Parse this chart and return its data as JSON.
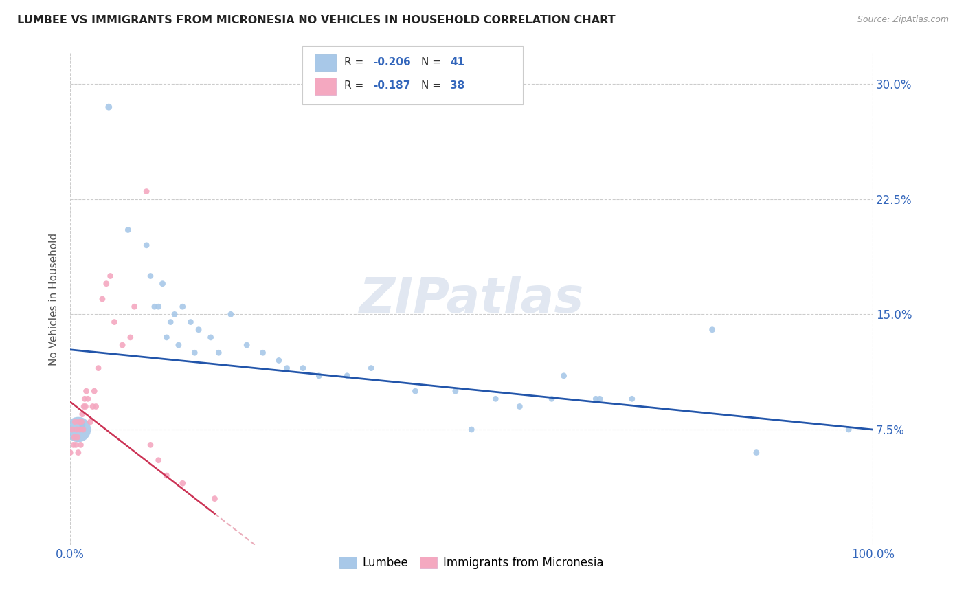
{
  "title": "LUMBEE VS IMMIGRANTS FROM MICRONESIA NO VEHICLES IN HOUSEHOLD CORRELATION CHART",
  "source": "Source: ZipAtlas.com",
  "ylabel": "No Vehicles in Household",
  "xlim": [
    0.0,
    1.0
  ],
  "ylim": [
    0.0,
    0.32
  ],
  "ytick_vals": [
    0.075,
    0.15,
    0.225,
    0.3
  ],
  "ytick_labels": [
    "7.5%",
    "15.0%",
    "22.5%",
    "30.0%"
  ],
  "xtick_vals": [
    0.0,
    1.0
  ],
  "xtick_labels": [
    "0.0%",
    "100.0%"
  ],
  "legend_r1": "R = -0.206",
  "legend_n1": "N = 41",
  "legend_r2": "R = -0.187",
  "legend_n2": "N = 38",
  "watermark": "ZIPatlas",
  "lumbee_color": "#a8c8e8",
  "micronesia_color": "#f4a8c0",
  "lumbee_line_color": "#2255aa",
  "micronesia_line_color": "#cc3355",
  "background_color": "#ffffff",
  "grid_color": "#cccccc",
  "lumbee_x": [
    0.048,
    0.072,
    0.095,
    0.1,
    0.105,
    0.11,
    0.115,
    0.12,
    0.125,
    0.13,
    0.135,
    0.14,
    0.15,
    0.155,
    0.16,
    0.175,
    0.185,
    0.2,
    0.22,
    0.24,
    0.26,
    0.27,
    0.29,
    0.31,
    0.345,
    0.375,
    0.43,
    0.48,
    0.5,
    0.53,
    0.56,
    0.6,
    0.615,
    0.655,
    0.66,
    0.7,
    0.8,
    0.855,
    0.97,
    0.01,
    0.015
  ],
  "lumbee_y": [
    0.285,
    0.205,
    0.195,
    0.175,
    0.155,
    0.155,
    0.17,
    0.135,
    0.145,
    0.15,
    0.13,
    0.155,
    0.145,
    0.125,
    0.14,
    0.135,
    0.125,
    0.15,
    0.13,
    0.125,
    0.12,
    0.115,
    0.115,
    0.11,
    0.11,
    0.115,
    0.1,
    0.1,
    0.075,
    0.095,
    0.09,
    0.095,
    0.11,
    0.095,
    0.095,
    0.095,
    0.14,
    0.06,
    0.075,
    0.075,
    0.078
  ],
  "lumbee_s": [
    50,
    40,
    40,
    40,
    40,
    40,
    40,
    40,
    40,
    40,
    40,
    40,
    40,
    40,
    40,
    40,
    40,
    40,
    40,
    40,
    40,
    40,
    40,
    40,
    40,
    40,
    40,
    40,
    40,
    40,
    40,
    40,
    40,
    40,
    40,
    40,
    40,
    40,
    40,
    700,
    40
  ],
  "micro_x": [
    0.0,
    0.002,
    0.004,
    0.005,
    0.006,
    0.007,
    0.008,
    0.009,
    0.01,
    0.011,
    0.012,
    0.013,
    0.014,
    0.015,
    0.016,
    0.017,
    0.018,
    0.019,
    0.02,
    0.022,
    0.025,
    0.028,
    0.03,
    0.032,
    0.035,
    0.04,
    0.045,
    0.05,
    0.055,
    0.065,
    0.075,
    0.08,
    0.095,
    0.1,
    0.11,
    0.12,
    0.14,
    0.18
  ],
  "micro_y": [
    0.06,
    0.075,
    0.065,
    0.07,
    0.08,
    0.065,
    0.075,
    0.07,
    0.06,
    0.08,
    0.075,
    0.065,
    0.08,
    0.085,
    0.075,
    0.09,
    0.095,
    0.09,
    0.1,
    0.095,
    0.08,
    0.09,
    0.1,
    0.09,
    0.115,
    0.16,
    0.17,
    0.175,
    0.145,
    0.13,
    0.135,
    0.155,
    0.23,
    0.065,
    0.055,
    0.045,
    0.04,
    0.03
  ],
  "micro_s": [
    40,
    40,
    40,
    40,
    40,
    40,
    40,
    40,
    40,
    40,
    40,
    40,
    40,
    40,
    40,
    40,
    40,
    40,
    40,
    40,
    40,
    40,
    40,
    40,
    40,
    40,
    40,
    40,
    40,
    40,
    40,
    40,
    40,
    40,
    40,
    40,
    40,
    40
  ],
  "lumbee_line_x": [
    0.0,
    1.0
  ],
  "lumbee_line_y": [
    0.127,
    0.075
  ],
  "micro_line_x": [
    0.0,
    0.23
  ],
  "micro_line_y": [
    0.093,
    0.0
  ]
}
